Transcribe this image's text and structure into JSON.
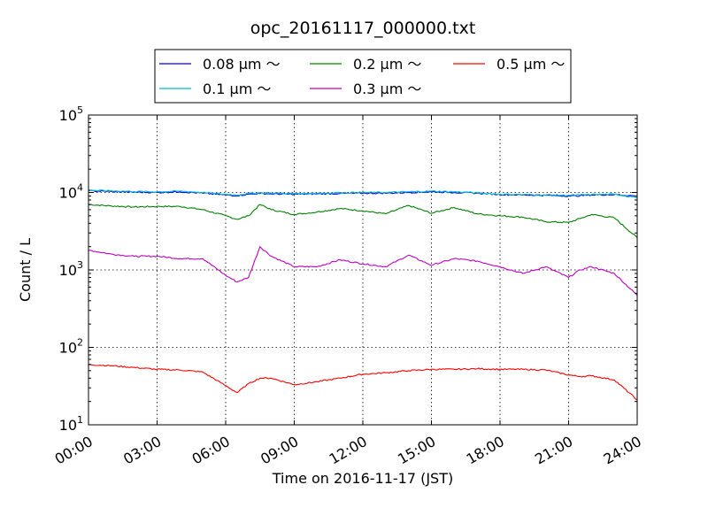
{
  "chart_data": {
    "type": "line",
    "title": "opc_20161117_000000.txt",
    "xlabel": "Time on 2016-11-17 (JST)",
    "ylabel": "Count / L",
    "xlim": [
      0,
      24
    ],
    "ylim": [
      10,
      100000
    ],
    "yscale": "log",
    "grid": true,
    "legend_position": "top-center-outside",
    "x_ticks": [
      {
        "value": 0,
        "label": "00:00"
      },
      {
        "value": 3,
        "label": "03:00"
      },
      {
        "value": 6,
        "label": "06:00"
      },
      {
        "value": 9,
        "label": "09:00"
      },
      {
        "value": 12,
        "label": "12:00"
      },
      {
        "value": 15,
        "label": "15:00"
      },
      {
        "value": 18,
        "label": "18:00"
      },
      {
        "value": 21,
        "label": "21:00"
      },
      {
        "value": 24,
        "label": "24:00"
      }
    ],
    "y_ticks": [
      {
        "value": 10,
        "base": "10",
        "exp": "1"
      },
      {
        "value": 100,
        "base": "10",
        "exp": "2"
      },
      {
        "value": 1000,
        "base": "10",
        "exp": "3"
      },
      {
        "value": 10000,
        "base": "10",
        "exp": "4"
      },
      {
        "value": 100000,
        "base": "10",
        "exp": "5"
      }
    ],
    "x": [
      0,
      1,
      2,
      3,
      4,
      5,
      6,
      6.5,
      7,
      7.5,
      8,
      9,
      10,
      11,
      12,
      13,
      14,
      15,
      16,
      17,
      18,
      19,
      20,
      21,
      21.5,
      22,
      23,
      24
    ],
    "series": [
      {
        "name": "0.08 μm ～",
        "color": "#0000ff",
        "values": [
          10500,
          10300,
          10100,
          10000,
          10200,
          9800,
          9300,
          9100,
          9500,
          9700,
          9600,
          9500,
          9600,
          9700,
          9800,
          9800,
          10000,
          10200,
          10000,
          9800,
          9400,
          9300,
          9200,
          9000,
          9100,
          9300,
          9400,
          9000
        ]
      },
      {
        "name": "0.1 μm ～",
        "color": "#00bfbf",
        "values": [
          10700,
          10500,
          10300,
          10200,
          10400,
          10000,
          9500,
          9300,
          9700,
          9900,
          9800,
          9700,
          9800,
          9900,
          10000,
          10000,
          10200,
          10400,
          10200,
          9900,
          9500,
          9400,
          9300,
          9200,
          9300,
          9400,
          9500,
          8600
        ]
      },
      {
        "name": "0.2 μm ～",
        "color": "#008000",
        "values": [
          7000,
          6700,
          6500,
          6600,
          6600,
          6000,
          5000,
          4500,
          5000,
          7000,
          6000,
          5200,
          5600,
          6200,
          5800,
          5300,
          6800,
          5400,
          6400,
          5300,
          5000,
          4800,
          4200,
          4100,
          4600,
          5200,
          4700,
          2600
        ]
      },
      {
        "name": "0.3 μm ～",
        "color": "#bf00bf",
        "values": [
          1800,
          1600,
          1500,
          1500,
          1400,
          1400,
          850,
          700,
          800,
          2000,
          1500,
          1100,
          1100,
          1350,
          1200,
          1100,
          1550,
          1150,
          1400,
          1300,
          1100,
          900,
          1100,
          800,
          1000,
          1100,
          900,
          470
        ]
      },
      {
        "name": "0.5 μm ～",
        "color": "#ff0000",
        "values": [
          60,
          58,
          55,
          52,
          51,
          48,
          32,
          26,
          34,
          40,
          40,
          33,
          36,
          40,
          45,
          47,
          50,
          52,
          52,
          53,
          52,
          52,
          51,
          44,
          42,
          43,
          38,
          21
        ]
      }
    ]
  }
}
